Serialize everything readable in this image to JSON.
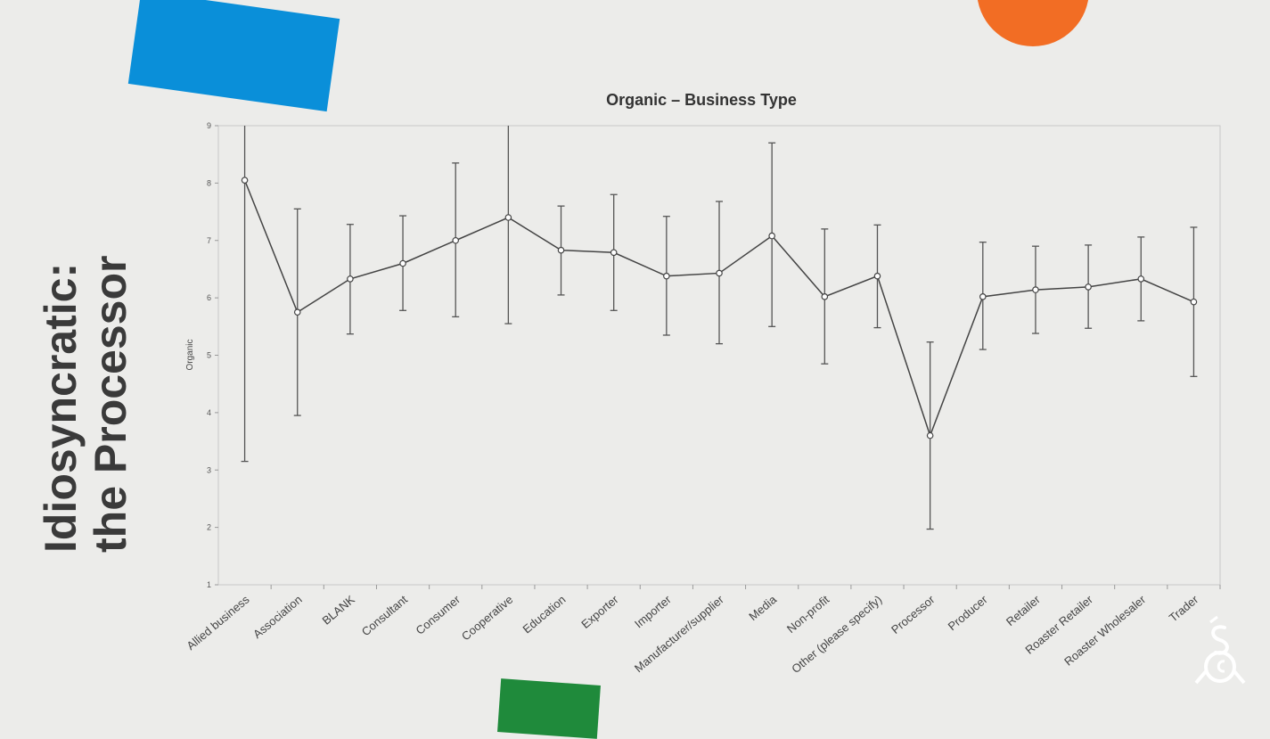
{
  "slide": {
    "title_line1": "Idiosyncratic:",
    "title_line2": "the Processor",
    "colors": {
      "blue": "#0a8fd9",
      "orange": "#f26d24",
      "green": "#1f8a3b",
      "title": "#3a3a3a"
    },
    "logo_icon": "sca-logo-icon"
  },
  "chart_data": {
    "type": "line",
    "title": "Organic – Business Type",
    "xlabel": "",
    "ylabel": "Organic",
    "ylim": [
      1,
      9
    ],
    "yticks": [
      1,
      2,
      3,
      4,
      5,
      6,
      7,
      8,
      9
    ],
    "grid": false,
    "error_bars": true,
    "categories": [
      "Allied business",
      "Association",
      "BLANK",
      "Consultant",
      "Consumer",
      "Cooperative",
      "Education",
      "Exporter",
      "Importer",
      "Manufacturer/supplier",
      "Media",
      "Non-profit",
      "Other (please specify)",
      "Processor",
      "Producer",
      "Retailer",
      "Roaster Retailer",
      "Roaster Wholesaler",
      "Trader"
    ],
    "series": [
      {
        "values": [
          8.05,
          5.75,
          6.33,
          6.6,
          7.0,
          7.4,
          6.83,
          6.79,
          6.38,
          6.43,
          7.08,
          6.02,
          6.38,
          3.6,
          6.02,
          6.14,
          6.19,
          6.33,
          5.93
        ],
        "lower": [
          3.15,
          3.95,
          5.37,
          5.78,
          5.67,
          5.55,
          6.05,
          5.78,
          5.35,
          5.2,
          5.5,
          4.85,
          5.48,
          1.97,
          5.1,
          5.38,
          5.47,
          5.6,
          4.63
        ],
        "upper": [
          9.0,
          7.55,
          7.28,
          7.43,
          8.35,
          9.0,
          7.6,
          7.8,
          7.42,
          7.68,
          8.7,
          7.2,
          7.27,
          5.23,
          6.97,
          6.9,
          6.92,
          7.06,
          7.23
        ]
      }
    ]
  }
}
